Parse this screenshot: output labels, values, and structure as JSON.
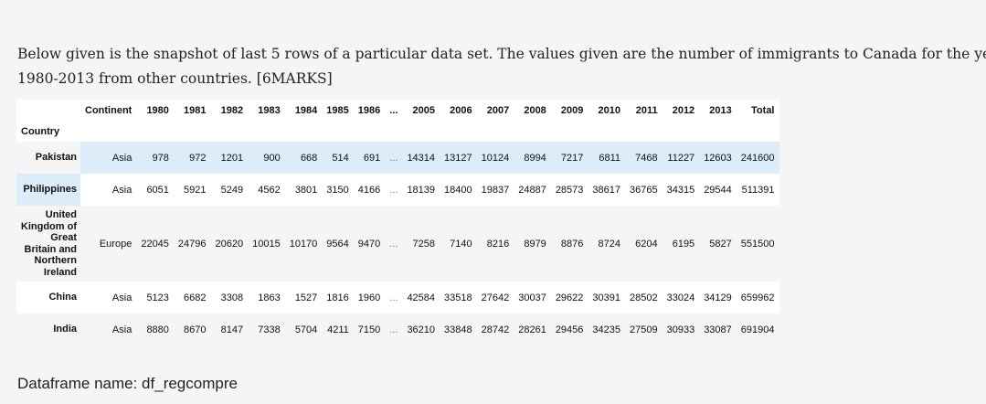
{
  "question": {
    "line1": "Below given is the snapshot of last 5 rows of a particular data set. The values given are the number of immigrants to Canada for the yea",
    "line2": "1980-2013 from other countries.  [6MARKS]"
  },
  "table": {
    "columns": [
      "Continent",
      "1980",
      "1981",
      "1982",
      "1983",
      "1984",
      "1985",
      "1986",
      "...",
      "2005",
      "2006",
      "2007",
      "2008",
      "2009",
      "2010",
      "2011",
      "2012",
      "2013",
      "Total"
    ],
    "index_name": "Country",
    "rows": [
      {
        "index": "Pakistan",
        "cells": [
          "Asia",
          978,
          972,
          1201,
          900,
          668,
          514,
          691,
          "...",
          14314,
          13127,
          10124,
          8994,
          7217,
          6811,
          7468,
          11227,
          12603,
          241600
        ]
      },
      {
        "index": "Philippines",
        "cells": [
          "Asia",
          6051,
          5921,
          5249,
          4562,
          3801,
          3150,
          4166,
          "...",
          18139,
          18400,
          19837,
          24887,
          28573,
          38617,
          36765,
          34315,
          29544,
          511391
        ]
      },
      {
        "index": "United Kingdom of Great Britain and Northern Ireland",
        "cells": [
          "Europe",
          22045,
          24796,
          20620,
          10015,
          10170,
          9564,
          9470,
          "...",
          7258,
          7140,
          8216,
          8979,
          8876,
          8724,
          6204,
          6195,
          5827,
          551500
        ]
      },
      {
        "index": "China",
        "cells": [
          "Asia",
          5123,
          6682,
          3308,
          1863,
          1527,
          1816,
          1960,
          "...",
          42584,
          33518,
          27642,
          30037,
          29622,
          30391,
          28502,
          33024,
          34129,
          659962
        ]
      },
      {
        "index": "India",
        "cells": [
          "Asia",
          8880,
          8670,
          8147,
          7338,
          5704,
          4211,
          7150,
          "...",
          36210,
          33848,
          28742,
          28261,
          29456,
          34235,
          27509,
          30933,
          33087,
          691904
        ]
      }
    ]
  },
  "caption": "Dataframe name: df_regcompre"
}
